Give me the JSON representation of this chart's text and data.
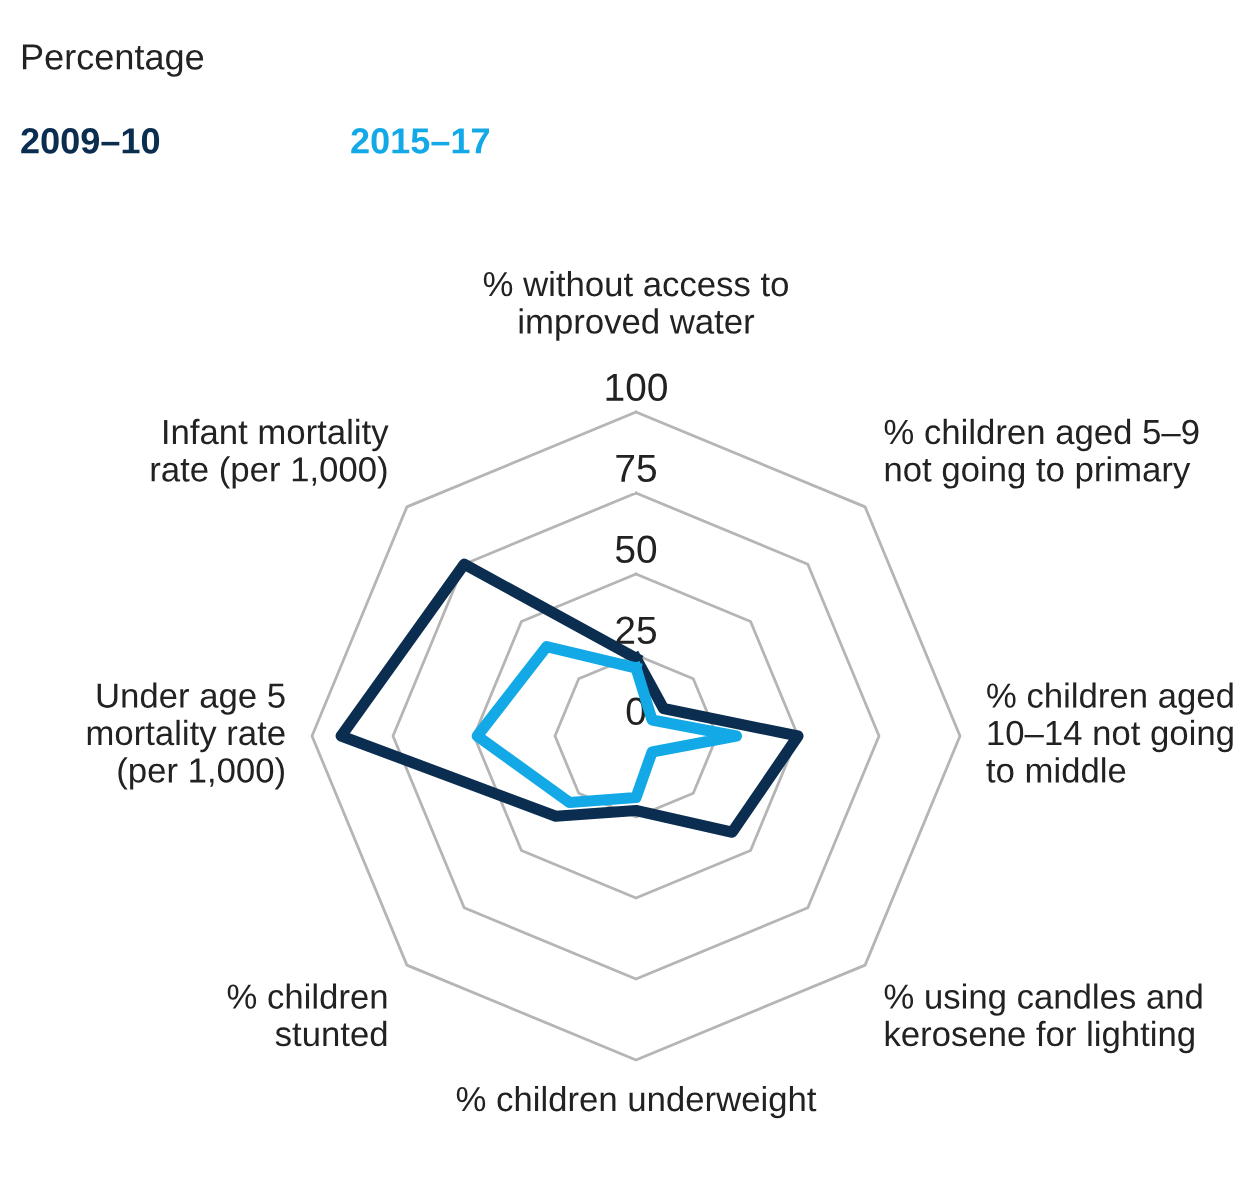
{
  "chart_data": {
    "type": "radar",
    "ylabel": "Percentage",
    "categories": [
      "% without access to\nimproved water",
      "% children aged 5–9\nnot going to primary",
      "% children aged\n10–14 not going\nto middle",
      "% using candles and\nkerosene for lighting",
      "% children underweight",
      "% children\nstunted",
      "Under age 5\nmortality rate\n(per 1,000)",
      "Infant mortality\nrate (per 1,000)"
    ],
    "series": [
      {
        "name": "2009–10",
        "color": "#0b2d4f",
        "values": [
          24,
          12,
          50,
          42,
          23,
          35,
          91,
          75
        ]
      },
      {
        "name": "2015–17",
        "color": "#12a9e6",
        "values": [
          21,
          7,
          31,
          7,
          19,
          29,
          49,
          39
        ]
      }
    ],
    "ylim": [
      0,
      100
    ],
    "yticks": [
      0,
      25,
      50,
      75,
      100
    ],
    "grid": true,
    "legend": "top left"
  }
}
